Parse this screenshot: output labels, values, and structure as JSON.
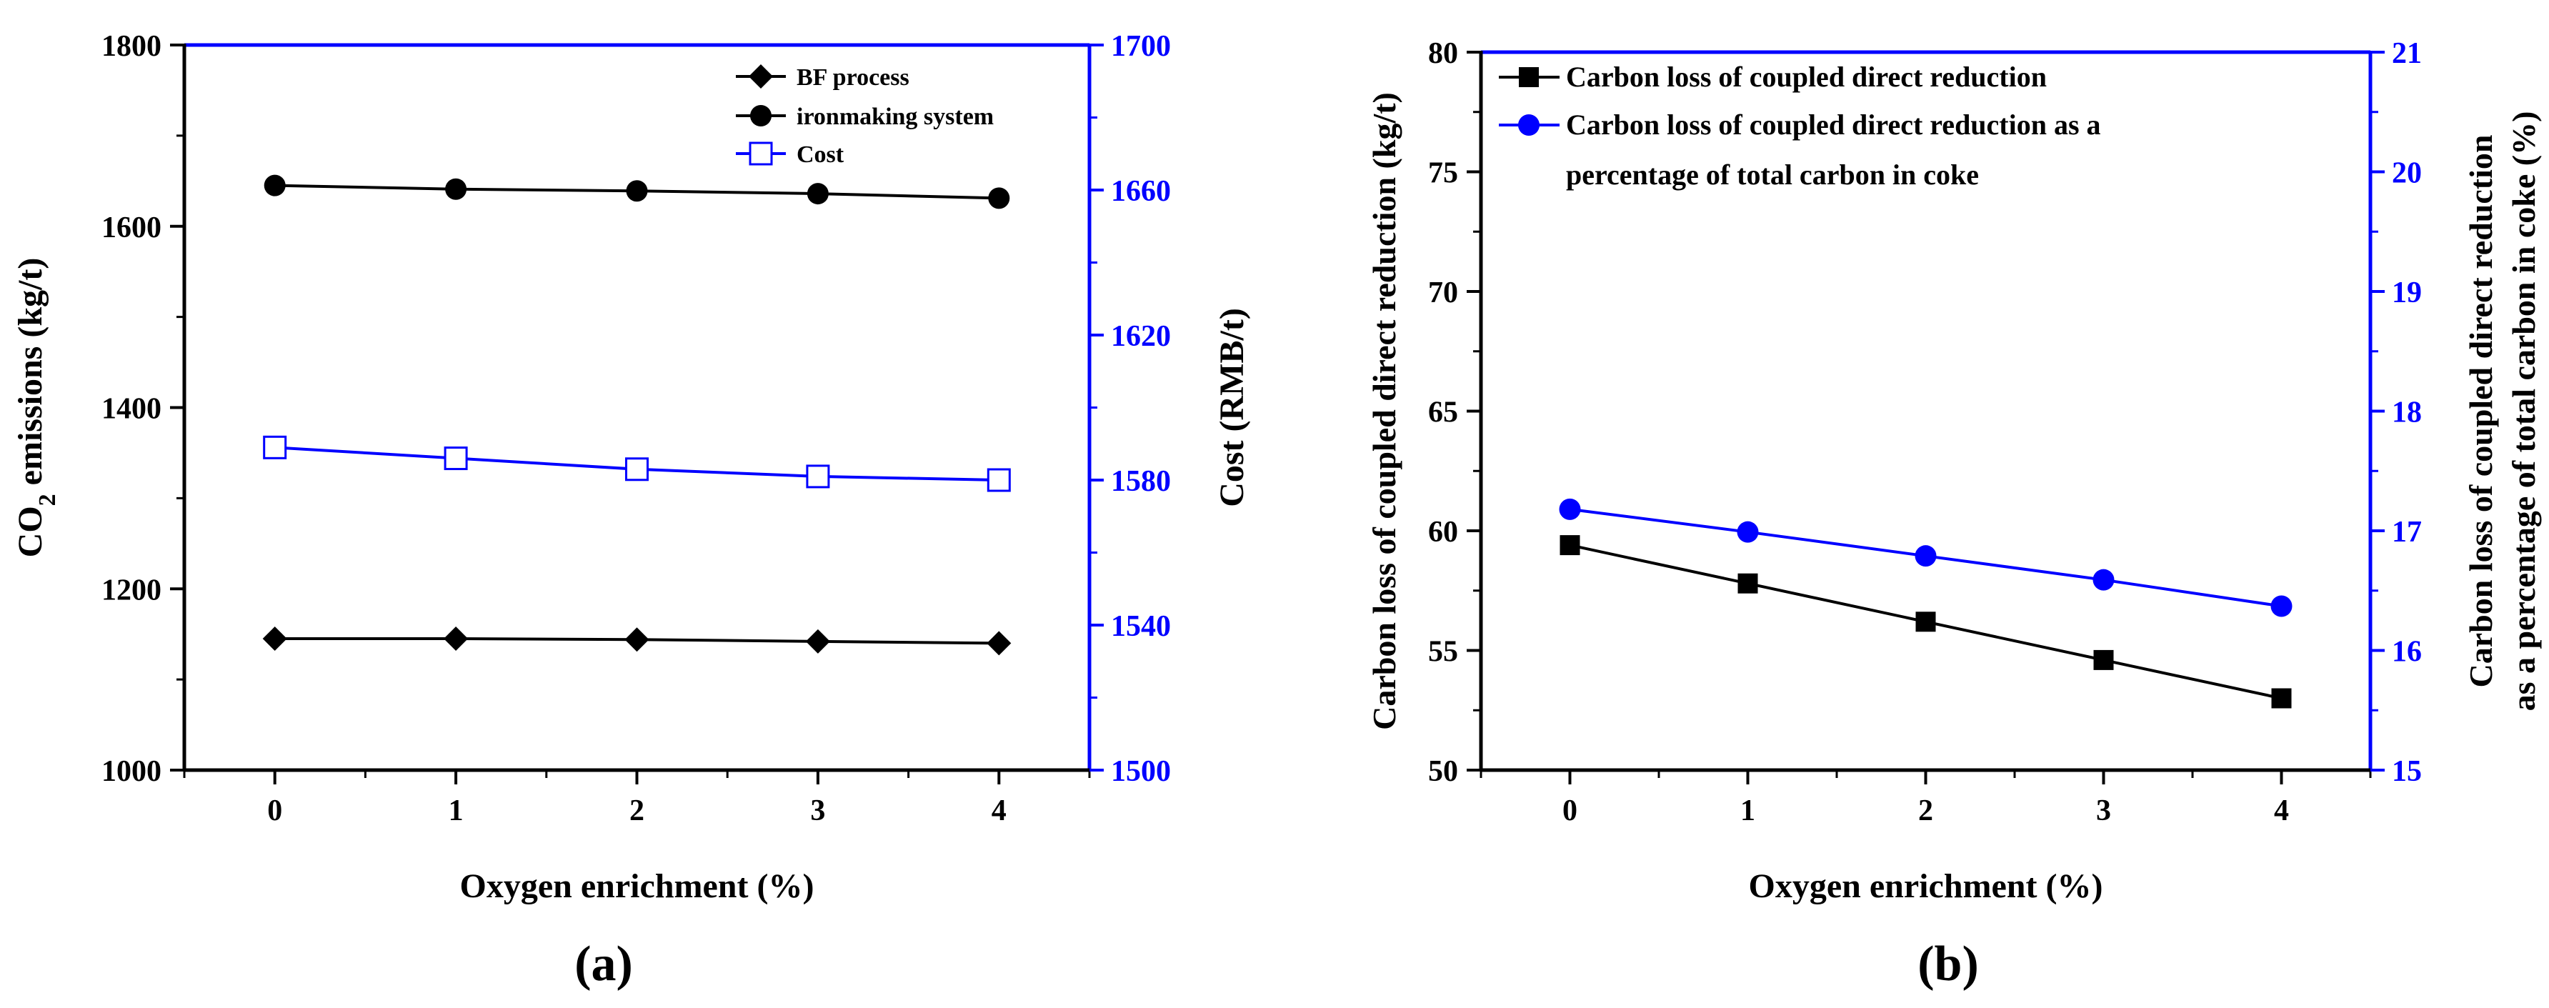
{
  "chart_data": [
    {
      "id": "a",
      "type": "line",
      "panel_label": "(a)",
      "xlabel": "Oxygen enrichment (%)",
      "categories": [
        "0",
        "1",
        "2",
        "3",
        "4"
      ],
      "x": [
        0,
        1,
        2,
        3,
        4
      ],
      "xlim": [
        -0.5,
        4.5
      ],
      "ylabel_left": {
        "main": "CO",
        "sub": "2",
        "rest": " emissions (kg/t)"
      },
      "ylim_left": [
        1000,
        1800
      ],
      "yticks_left": [
        1000,
        1200,
        1400,
        1600,
        1800
      ],
      "ylabel_right": "Cost (RMB/t)",
      "ylim_right": [
        1500,
        1700
      ],
      "yticks_right": [
        1500,
        1540,
        1580,
        1620,
        1660,
        1700
      ],
      "series": [
        {
          "name": "BF process",
          "axis": "left",
          "marker": "diamond",
          "color": "#000000",
          "values": [
            1145,
            1145,
            1144,
            1142,
            1140
          ]
        },
        {
          "name": "ironmaking system",
          "axis": "left",
          "marker": "circle",
          "color": "#000000",
          "values": [
            1645,
            1641,
            1639,
            1636,
            1631
          ]
        },
        {
          "name": "Cost",
          "axis": "right",
          "marker": "open-square",
          "color": "#0000ff",
          "values": [
            1589,
            1586,
            1583,
            1581,
            1580
          ]
        }
      ],
      "legend_position": "top-right"
    },
    {
      "id": "b",
      "type": "line",
      "panel_label": "(b)",
      "xlabel": "Oxygen enrichment (%)",
      "categories": [
        "0",
        "1",
        "2",
        "3",
        "4"
      ],
      "x": [
        0,
        1,
        2,
        3,
        4
      ],
      "xlim": [
        -0.5,
        4.5
      ],
      "ylabel_left": "Carbon loss of coupled direct reduction (kg/t)",
      "ylim_left": [
        50,
        80
      ],
      "yticks_left": [
        50,
        55,
        60,
        65,
        70,
        75,
        80
      ],
      "ylabel_right_line1": "Carbon loss of coupled direct reduction",
      "ylabel_right_line2": "as a percentage of total carbon in coke (%)",
      "ylim_right": [
        15,
        21
      ],
      "yticks_right": [
        15,
        16,
        17,
        18,
        19,
        20,
        21
      ],
      "series": [
        {
          "name": "Carbon loss of coupled direct reduction",
          "axis": "left",
          "marker": "square",
          "color": "#000000",
          "values": [
            59.4,
            57.8,
            56.2,
            54.6,
            53.0
          ]
        },
        {
          "name_line1": "Carbon loss of coupled direct reduction as a",
          "name_line2": "percentage of total carbon in coke",
          "axis": "right",
          "marker": "circle",
          "color": "#0000ff",
          "values": [
            17.18,
            16.99,
            16.79,
            16.59,
            16.37
          ]
        }
      ],
      "legend_position": "top-left"
    }
  ],
  "colors": {
    "axis_black": "#000000",
    "axis_blue": "#0000ff"
  }
}
